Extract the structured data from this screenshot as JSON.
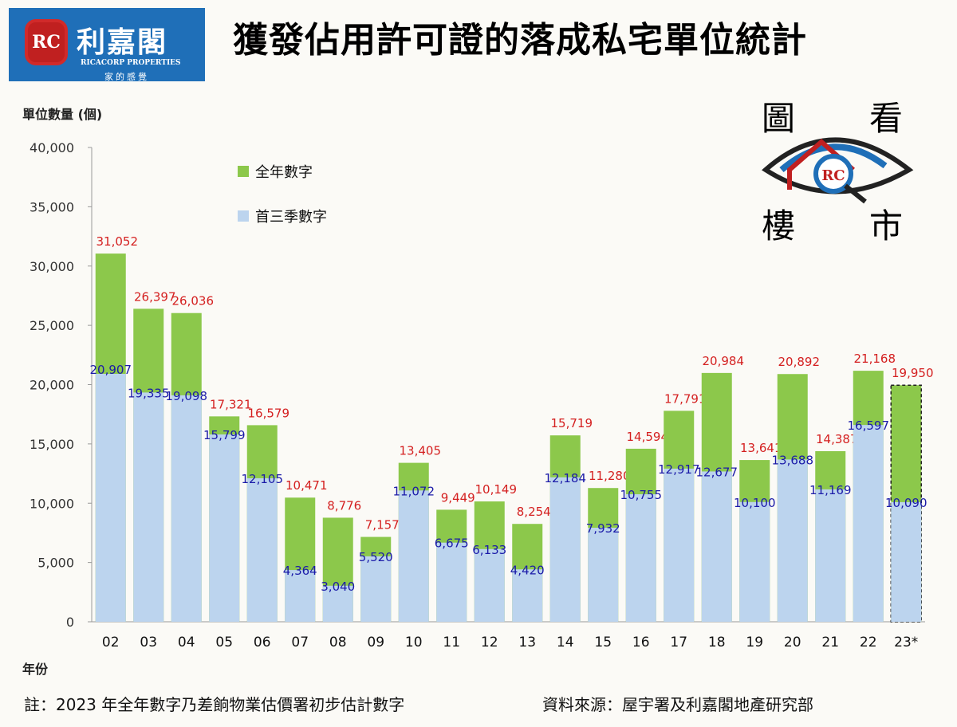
{
  "logo": {
    "name_cn": "利嘉閣",
    "name_en": "RICACORP PROPERTIES",
    "slogan": "家的感覺",
    "mark": "RC"
  },
  "title": "獲發佔用許可證的落成私宅單位統計",
  "badge": {
    "chars": [
      "圖",
      "看",
      "樓",
      "市"
    ]
  },
  "note": "註：2023 年全年數字乃差餉物業估價署初步估計數字",
  "source": "資料來源：屋宇署及利嘉閣地產研究部",
  "chart_data": {
    "type": "bar",
    "stacked": "overlay",
    "ylabel": "單位數量 (個)",
    "xlabel": "年份",
    "ylim": [
      0,
      40000
    ],
    "yticks": [
      "0",
      "5,000",
      "10,000",
      "15,000",
      "20,000",
      "25,000",
      "30,000",
      "35,000",
      "40,000"
    ],
    "grid": false,
    "legend_position": "top-left",
    "categories": [
      "02",
      "03",
      "04",
      "05",
      "06",
      "07",
      "08",
      "09",
      "10",
      "11",
      "12",
      "13",
      "14",
      "15",
      "16",
      "17",
      "18",
      "19",
      "20",
      "21",
      "22",
      "23*"
    ],
    "series": [
      {
        "name": "全年數字",
        "color": "#8cc84b",
        "label_color": "#d42020",
        "values": [
          31052,
          26397,
          26036,
          17321,
          16579,
          10471,
          8776,
          7157,
          13405,
          9449,
          10149,
          8254,
          15719,
          11280,
          14594,
          17791,
          20984,
          13641,
          20892,
          14387,
          21168,
          19950
        ],
        "labels": [
          "31,052",
          "26,397",
          "26,036",
          "17,321",
          "16,579",
          "10,471",
          "8,776",
          "7,157",
          "13,405",
          "9,449",
          "10,149",
          "8,254",
          "15,719",
          "11,280",
          "14,594",
          "17,791",
          "20,984",
          "13,641",
          "20,892",
          "14,387",
          "21,168",
          "19,950"
        ]
      },
      {
        "name": "首三季數字",
        "color": "#bcd4ee",
        "label_color": "#1a1aa8",
        "values": [
          20907,
          19335,
          19098,
          15799,
          12105,
          4364,
          3040,
          5520,
          11072,
          6675,
          6133,
          4420,
          12184,
          7932,
          10755,
          12917,
          12677,
          10100,
          13688,
          11169,
          16597,
          10090
        ],
        "labels": [
          "20,907",
          "19,335",
          "19,098",
          "15,799",
          "12,105",
          "4,364",
          "3,040",
          "5,520",
          "11,072",
          "6,675",
          "6,133",
          "4,420",
          "12,184",
          "7,932",
          "10,755",
          "12,917",
          "12,677",
          "10,100",
          "13,688",
          "11,169",
          "16,597",
          "10,090"
        ]
      }
    ],
    "estimated_category": "23*"
  }
}
